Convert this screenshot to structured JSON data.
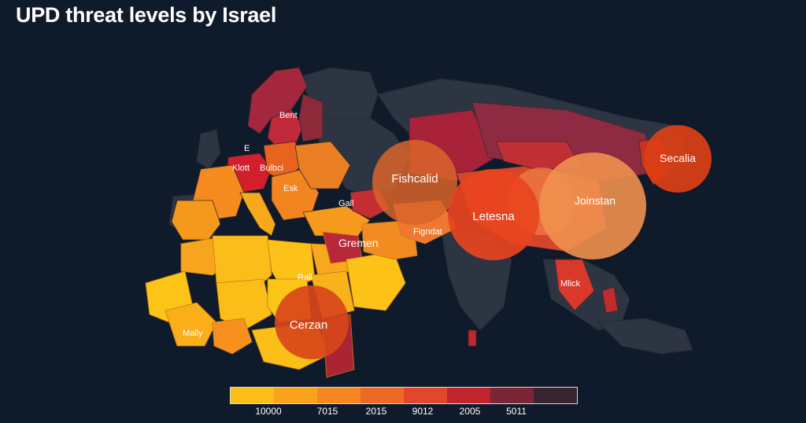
{
  "title": "UPD threat levels by Israel",
  "labels": {
    "bent": "Bent",
    "e": "E",
    "klott": "Klott",
    "bulbci": "Bulbci",
    "esk": "Esk",
    "gall": "Gall",
    "fishcalid": "Fishcalid",
    "figndat": "Figndat",
    "gremen": "Gremen",
    "letesna": "Letesna",
    "joinstan": "Joinstan",
    "secalia": "Secalia",
    "mlick": "Mlick",
    "rall": "Rall",
    "cerzan": "Cerzan",
    "mally": "Mally"
  },
  "bubbles": [
    {
      "name": "bubble-fishcalid",
      "value": 3,
      "color": "#d9642a"
    },
    {
      "name": "bubble-letesna",
      "value": 5,
      "color": "#e8441e"
    },
    {
      "name": "bubble-joinstan-small",
      "value": 2,
      "color": "#ee7a44"
    },
    {
      "name": "bubble-joinstan",
      "value": 4,
      "color": "#f0904f"
    },
    {
      "name": "bubble-secalia",
      "value": 3,
      "color": "#dc3f16"
    },
    {
      "name": "bubble-cerzan",
      "value": 3,
      "color": "#d8461a"
    }
  ],
  "legend": {
    "colors": [
      "#fbbd17",
      "#fba21d",
      "#f58620",
      "#ee6a24",
      "#e2462b",
      "#c0252e",
      "#7d2435",
      "#3a2330"
    ],
    "labels": [
      "10000",
      "7015",
      "2015",
      "9012",
      "2005",
      "5011"
    ]
  }
}
